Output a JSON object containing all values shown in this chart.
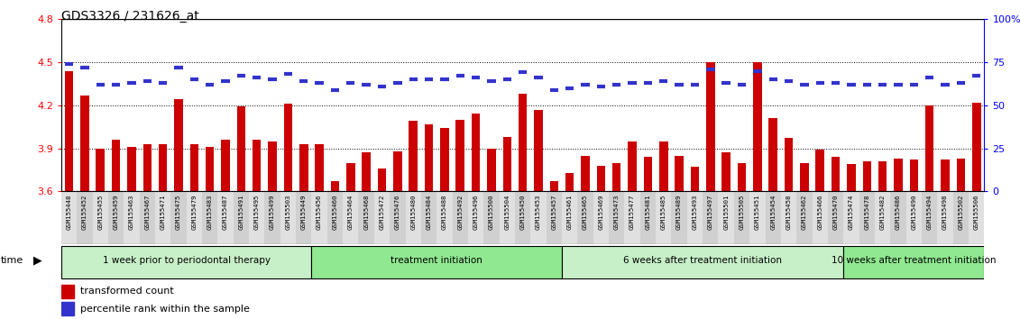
{
  "title": "GDS3326 / 231626_at",
  "y_min": 3.6,
  "y_max": 4.8,
  "y_ticks": [
    3.6,
    3.9,
    4.2,
    4.5,
    4.8
  ],
  "grid_lines": [
    3.9,
    4.2,
    4.5
  ],
  "bar_color": "#cc0000",
  "percentile_color": "#3333cc",
  "groups": [
    {
      "label": "1 week prior to periodontal therapy",
      "start": 0,
      "end": 16,
      "color": "#c8f0c8"
    },
    {
      "label": "treatment initiation",
      "start": 16,
      "end": 32,
      "color": "#90e890"
    },
    {
      "label": "6 weeks after treatment initiation",
      "start": 32,
      "end": 50,
      "color": "#c8f0c8"
    },
    {
      "label": "10 weeks after treatment initiation",
      "start": 50,
      "end": 59,
      "color": "#90e890"
    }
  ],
  "samples": [
    "GSM155448",
    "GSM155452",
    "GSM155455",
    "GSM155459",
    "GSM155463",
    "GSM155467",
    "GSM155471",
    "GSM155475",
    "GSM155479",
    "GSM155483",
    "GSM155487",
    "GSM155491",
    "GSM155495",
    "GSM155499",
    "GSM155503",
    "GSM155449",
    "GSM155456",
    "GSM155460",
    "GSM155464",
    "GSM155468",
    "GSM155472",
    "GSM155476",
    "GSM155480",
    "GSM155484",
    "GSM155488",
    "GSM155492",
    "GSM155496",
    "GSM155500",
    "GSM155504",
    "GSM155450",
    "GSM155453",
    "GSM155457",
    "GSM155461",
    "GSM155465",
    "GSM155469",
    "GSM155473",
    "GSM155477",
    "GSM155481",
    "GSM155485",
    "GSM155489",
    "GSM155493",
    "GSM155497",
    "GSM155501",
    "GSM155505",
    "GSM155451",
    "GSM155454",
    "GSM155458",
    "GSM155462",
    "GSM155466",
    "GSM155470",
    "GSM155474",
    "GSM155478",
    "GSM155482",
    "GSM155486",
    "GSM155490",
    "GSM155494",
    "GSM155498",
    "GSM155502",
    "GSM155506"
  ],
  "transformed_counts": [
    4.44,
    4.27,
    3.9,
    3.96,
    3.91,
    3.93,
    3.93,
    4.24,
    3.93,
    3.91,
    3.96,
    4.19,
    3.96,
    3.95,
    4.21,
    3.93,
    3.93,
    3.67,
    3.8,
    3.87,
    3.76,
    3.88,
    4.09,
    4.07,
    4.04,
    4.1,
    4.14,
    3.9,
    3.98,
    4.28,
    4.17,
    3.67,
    3.73,
    3.85,
    3.78,
    3.8,
    3.95,
    3.84,
    3.95,
    3.85,
    3.77,
    4.5,
    3.87,
    3.8,
    4.5,
    4.11,
    3.97,
    3.8,
    3.89,
    3.84,
    3.79,
    3.81,
    3.81,
    3.83,
    3.82,
    4.2,
    3.82,
    3.83,
    4.22
  ],
  "percentile_ranks": [
    74,
    72,
    62,
    62,
    63,
    64,
    63,
    72,
    65,
    62,
    64,
    67,
    66,
    65,
    68,
    64,
    63,
    59,
    63,
    62,
    61,
    63,
    65,
    65,
    65,
    67,
    66,
    64,
    65,
    69,
    66,
    59,
    60,
    62,
    61,
    62,
    63,
    63,
    64,
    62,
    62,
    71,
    63,
    62,
    70,
    65,
    64,
    62,
    63,
    63,
    62,
    62,
    62,
    62,
    62,
    66,
    62,
    63,
    67
  ]
}
